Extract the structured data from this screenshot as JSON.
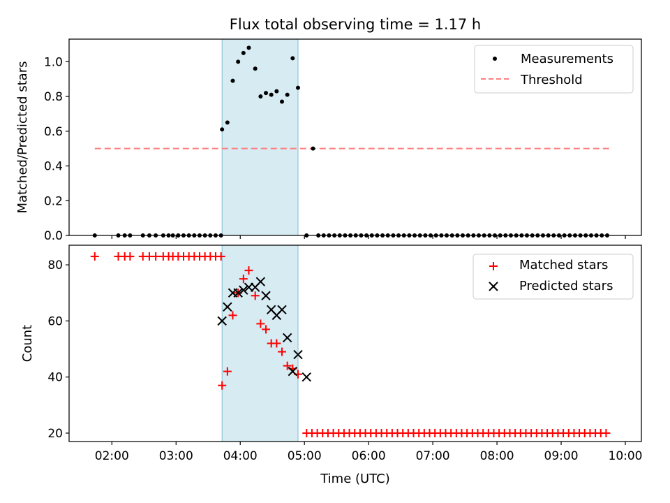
{
  "figure": {
    "title": "Flux total observing time = 1.17 h"
  },
  "chart_data": [
    {
      "type": "scatter",
      "panel": "top",
      "ylabel": "Matched/Predicted stars",
      "xlabel": "",
      "xlim": [
        "01:20",
        "10:15"
      ],
      "ylim": [
        0.0,
        1.13
      ],
      "yticks": [
        0.0,
        0.2,
        0.4,
        0.6,
        0.8,
        1.0
      ],
      "ytick_labels": [
        "0.0",
        "0.2",
        "0.4",
        "0.6",
        "0.8",
        "1.0"
      ],
      "x_ticks": [
        "02:00",
        "03:00",
        "04:00",
        "05:00",
        "06:00",
        "07:00",
        "08:00",
        "09:00",
        "10:00"
      ],
      "x_tick_labels_shown": false,
      "shaded_span": {
        "x_start": "03:43",
        "x_end": "04:54",
        "color": "#add8e6"
      },
      "legend": {
        "placement": "top-right"
      },
      "series": [
        {
          "name": "Measurements",
          "kind": "points",
          "color": "#000000",
          "x": [
            "01:44",
            "02:06",
            "02:12",
            "02:17",
            "02:29",
            "02:35",
            "02:41",
            "02:48",
            "02:53",
            "02:57",
            "03:02",
            "03:07",
            "03:12",
            "03:17",
            "03:22",
            "03:27",
            "03:32",
            "03:37",
            "03:42",
            "03:43",
            "03:48",
            "03:53",
            "03:58",
            "04:03",
            "04:08",
            "04:14",
            "04:19",
            "04:24",
            "04:29",
            "04:34",
            "04:39",
            "04:44",
            "04:49",
            "04:54",
            "05:02",
            "05:08",
            "05:13"
          ],
          "y": [
            0.0,
            0.0,
            0.0,
            0.0,
            0.0,
            0.0,
            0.0,
            0.0,
            0.0,
            0.0,
            0.0,
            0.0,
            0.0,
            0.0,
            0.0,
            0.0,
            0.0,
            0.0,
            0.0,
            0.61,
            0.65,
            0.89,
            1.0,
            1.05,
            1.08,
            0.96,
            0.8,
            0.82,
            0.81,
            0.83,
            0.77,
            0.81,
            1.02,
            0.85,
            0.0,
            0.5,
            0.0
          ]
        },
        {
          "name": "Threshold",
          "kind": "dashed-line",
          "color": "#ff7f7f",
          "x": [
            "01:44",
            "09:46"
          ],
          "y": [
            0.5,
            0.5
          ]
        }
      ],
      "zero_points_from_0513_to_0946_every_minutes": 5
    },
    {
      "type": "scatter",
      "panel": "bottom",
      "xlabel": "Time (UTC)",
      "ylabel": "Count",
      "xlim": [
        "01:20",
        "10:15"
      ],
      "ylim": [
        17,
        87
      ],
      "yticks": [
        20,
        40,
        60,
        80
      ],
      "ytick_labels": [
        "20",
        "40",
        "60",
        "80"
      ],
      "x_ticks": [
        "02:00",
        "03:00",
        "04:00",
        "05:00",
        "06:00",
        "07:00",
        "08:00",
        "09:00",
        "10:00"
      ],
      "x_tick_labels": [
        "02:00",
        "03:00",
        "04:00",
        "05:00",
        "06:00",
        "07:00",
        "08:00",
        "09:00",
        "10:00"
      ],
      "shaded_span": {
        "x_start": "03:43",
        "x_end": "04:54",
        "color": "#add8e6"
      },
      "legend": {
        "placement": "top-right"
      },
      "series": [
        {
          "name": "Matched stars",
          "marker": "plus",
          "color": "#ff0000",
          "x": [
            "01:44",
            "02:06",
            "02:12",
            "02:17",
            "02:29",
            "02:35",
            "02:41",
            "02:48",
            "02:53",
            "02:57",
            "03:02",
            "03:07",
            "03:12",
            "03:17",
            "03:22",
            "03:27",
            "03:32",
            "03:37",
            "03:42",
            "03:43",
            "03:48",
            "03:53",
            "03:58",
            "04:03",
            "04:08",
            "04:14",
            "04:19",
            "04:24",
            "04:29",
            "04:34",
            "04:39",
            "04:44",
            "04:49",
            "04:54"
          ],
          "y": [
            83,
            83,
            83,
            83,
            83,
            83,
            83,
            83,
            83,
            83,
            83,
            83,
            83,
            83,
            83,
            83,
            83,
            83,
            83,
            37,
            42,
            62,
            70,
            75,
            78,
            69,
            59,
            57,
            52,
            52,
            49,
            44,
            43,
            41
          ]
        },
        {
          "name": "Predicted stars",
          "marker": "x",
          "color": "#000000",
          "x": [
            "03:43",
            "03:48",
            "03:53",
            "03:58",
            "04:03",
            "04:08",
            "04:14",
            "04:19",
            "04:24",
            "04:29",
            "04:34",
            "04:39",
            "04:44",
            "04:49",
            "04:54",
            "05:02"
          ],
          "y": [
            60,
            65,
            70,
            70,
            71,
            72,
            72,
            74,
            69,
            64,
            62,
            64,
            54,
            42,
            48,
            40
          ]
        }
      ],
      "matched_constant_tail": {
        "value": 20,
        "from": "05:02",
        "to": "09:46",
        "every_minutes": 5
      }
    }
  ]
}
